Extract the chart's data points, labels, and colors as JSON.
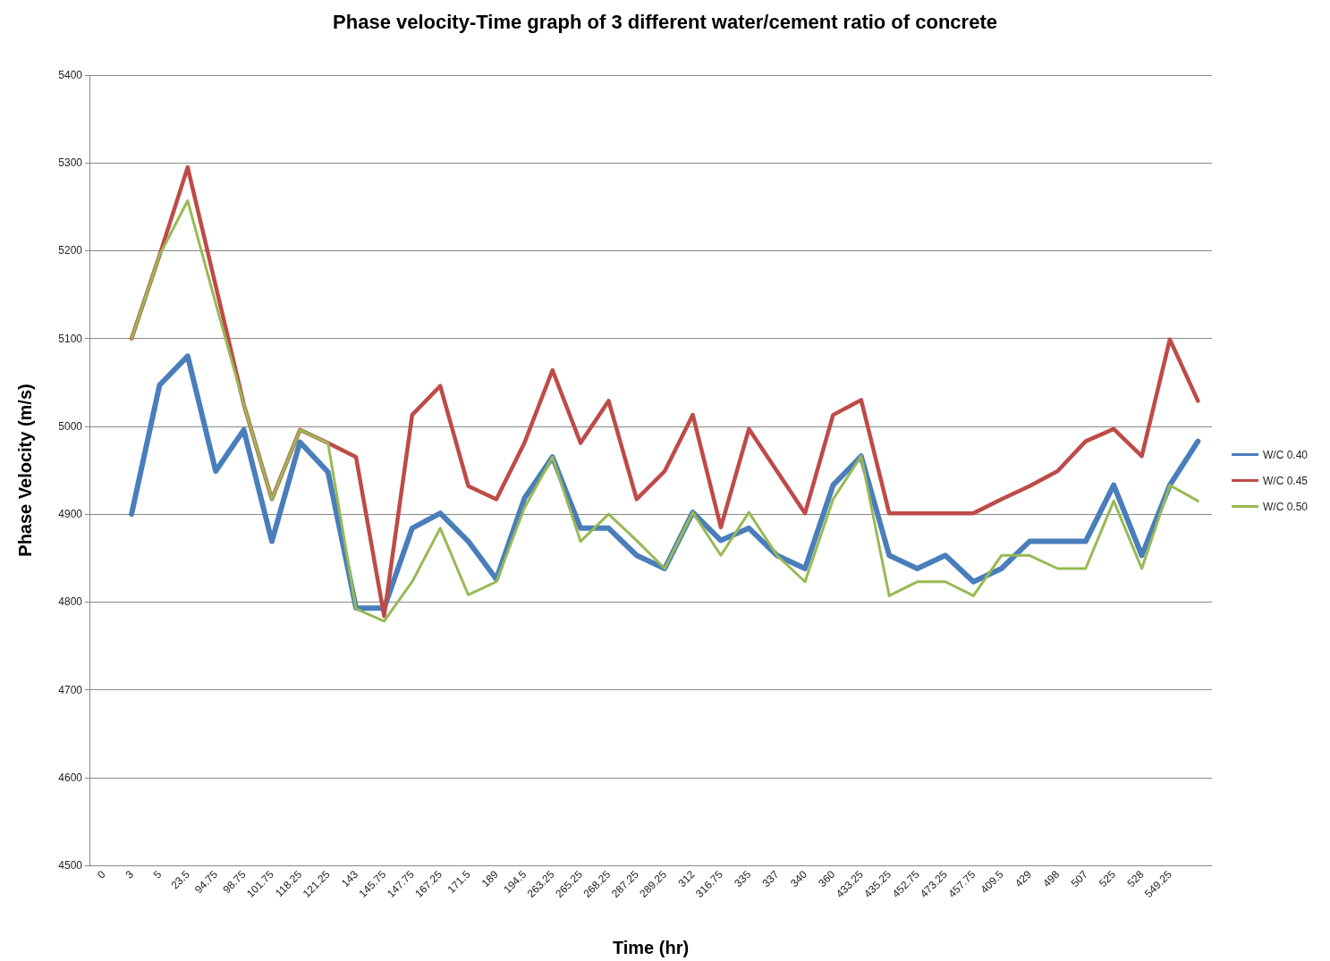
{
  "chart_data": {
    "type": "line",
    "title": "Phase velocity-Time graph of 3 different water/cement ratio of concrete",
    "xlabel": "Time (hr)",
    "ylabel": "Phase Velocity (m/s)",
    "categories": [
      "0",
      "3",
      "5",
      "23.5",
      "94.75",
      "98.75",
      "101.75",
      "118.25",
      "121.25",
      "143",
      "145.75",
      "147.75",
      "167.25",
      "171.5",
      "189",
      "194.5",
      "263.25",
      "265.25",
      "268.25",
      "287.25",
      "289.25",
      "312",
      "316.75",
      "335",
      "337",
      "340",
      "360",
      "433.25",
      "435.25",
      "452.75",
      "473.25",
      "457.75",
      "409.5",
      "429",
      "498",
      "507",
      "525",
      "528",
      "549.25",
      null
    ],
    "series": [
      {
        "name": "W/C 0.40",
        "color": "#4a7ebb",
        "values": [
          null,
          4900,
          5047,
          5080,
          4949,
          4996,
          4869,
          4982,
          4948,
          4793,
          4793,
          4884,
          4901,
          4869,
          4826,
          4918,
          4965,
          4884,
          4884,
          4853,
          4838,
          4902,
          4870,
          4884,
          4853,
          4838,
          4933,
          4966,
          4853,
          4838,
          4853,
          4823,
          4838,
          4869,
          4869,
          4869,
          4933,
          4853,
          4933,
          4983
        ]
      },
      {
        "name": "W/C 0.45",
        "color": "#be4b48",
        "values": [
          null,
          5100,
          5195,
          5295,
          5160,
          5025,
          4917,
          4996,
          4981,
          4965,
          4784,
          5013,
          5046,
          4932,
          4917,
          4981,
          5064,
          4981,
          5029,
          4917,
          4949,
          5013,
          4885,
          4997,
          4949,
          4901,
          5013,
          5030,
          4901,
          4901,
          4901,
          4901,
          4917,
          4932,
          4949,
          4983,
          4997,
          4966,
          5099,
          5029
        ]
      },
      {
        "name": "W/C 0.50",
        "color": "#98b954",
        "values": [
          null,
          5100,
          5195,
          5257,
          5140,
          5025,
          4917,
          4996,
          4981,
          4792,
          4778,
          4823,
          4884,
          4808,
          4823,
          4907,
          4965,
          4869,
          4900,
          4870,
          4838,
          4902,
          4853,
          4902,
          4853,
          4823,
          4917,
          4966,
          4807,
          4823,
          4823,
          4807,
          4853,
          4853,
          4838,
          4838,
          4915,
          4838,
          4933,
          4915
        ]
      }
    ],
    "ylim": [
      4500,
      5400
    ],
    "yticks": [
      4500,
      4600,
      4700,
      4800,
      4900,
      5000,
      5100,
      5200,
      5300,
      5400
    ],
    "grid": "y",
    "legend": "right",
    "marker": "none",
    "line_style": "solid"
  }
}
